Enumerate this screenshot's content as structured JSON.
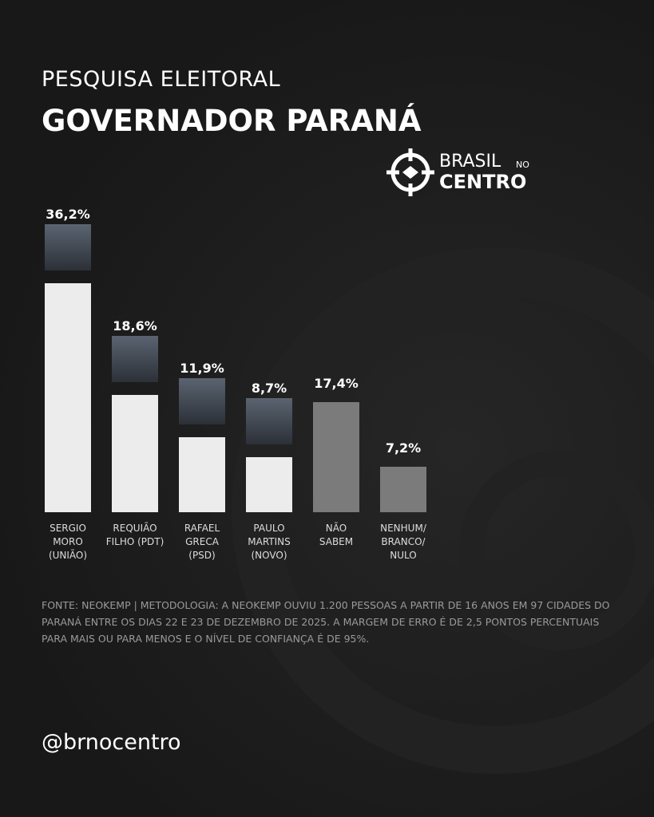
{
  "chart_data": {
    "type": "bar",
    "subtitle": "PESQUISA ELEITORAL",
    "title": "GOVERNADOR PARANÁ",
    "categories": [
      "SERGIO\nMORO\n(UNIÃO)",
      "REQUIÃO\nFILHO (PDT)",
      "RAFAEL\nGRECA\n(PSD)",
      "PAULO\nMARTINS\n(NOVO)",
      "NÃO\nSABEM",
      "NENHUM/\nBRANCO/\nNULO"
    ],
    "values": [
      36.2,
      18.6,
      11.9,
      8.7,
      17.4,
      7.2
    ],
    "value_labels": [
      "36,2%",
      "18,6%",
      "11,9%",
      "8,7%",
      "17,4%",
      "7,2%"
    ],
    "colors": [
      "#ececec",
      "#ececec",
      "#ececec",
      "#ececec",
      "#7b7b7b",
      "#7b7b7b"
    ],
    "source": "FONTE: NEOKEMP | METODOLOGIA: A NEOKEMP OUVIU 1.200 PESSOAS A PARTIR DE 16 ANOS EM 97 CIDADES DO PARANÁ ENTRE OS DIAS 22 E 23 DE DEZEMBRO DE 2025. A MARGEM DE ERRO É DE 2,5 PONTOS PERCENTUAIS PARA MAIS OU PARA MENOS E O NÍVEL DE CONFIANÇA É DE 95%.",
    "handle": "@brnocentro"
  },
  "logo": {
    "brasil": "BRASIL",
    "no": "NO",
    "centro": "CENTRO"
  }
}
